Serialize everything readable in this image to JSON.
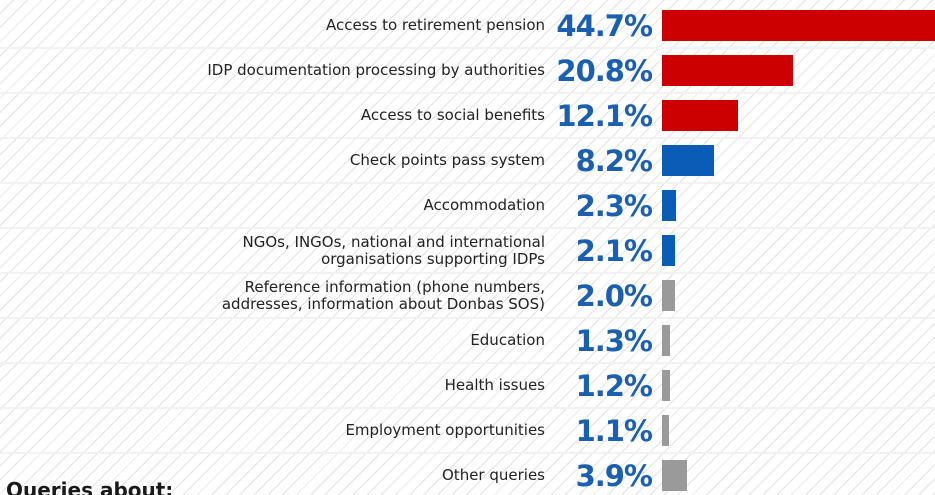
{
  "chart_data": {
    "type": "bar",
    "orientation": "horizontal",
    "title": "Queries about:",
    "categories": [
      "Access to retirement pension",
      "IDP documentation processing by authorities",
      "Access to social benefits",
      "Check points pass system",
      "Accommodation",
      "NGOs, INGOs, national and international\norganisations supporting IDPs",
      "Reference information (phone numbers,\naddresses, information about Donbas SOS)",
      "Education",
      "Health issues",
      "Employment opportunities",
      "Other queries"
    ],
    "values": [
      44.7,
      20.8,
      12.1,
      8.2,
      2.3,
      2.1,
      2.0,
      1.3,
      1.2,
      1.1,
      3.9
    ],
    "value_labels": [
      "44.7%",
      "20.8%",
      "12.1%",
      "8.2%",
      "2.3%",
      "2.1%",
      "2.0%",
      "1.3%",
      "1.2%",
      "1.1%",
      "3.9%"
    ],
    "colors": [
      "#cc0000",
      "#cc0000",
      "#cc0000",
      "#0a5cb4",
      "#0a5cb4",
      "#0a5cb4",
      "#9a9a9a",
      "#9a9a9a",
      "#9a9a9a",
      "#9a9a9a",
      "#9a9a9a"
    ]
  }
}
